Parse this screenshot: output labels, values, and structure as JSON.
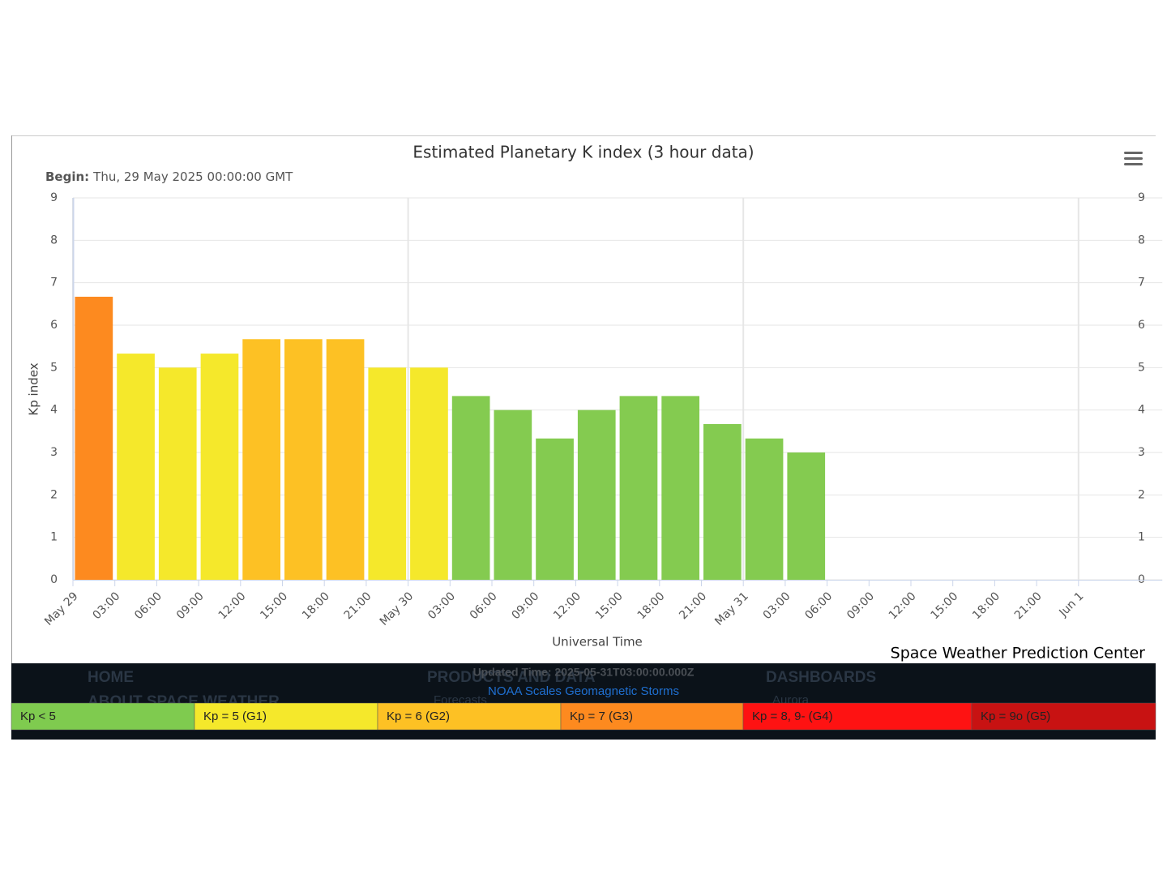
{
  "chart_data": {
    "type": "bar",
    "title": "Estimated Planetary K index (3 hour data)",
    "subtitle_label": "Begin:",
    "subtitle": "Thu, 29 May 2025 00:00:00 GMT",
    "y_label": "Kp index",
    "x_label": "Universal Time",
    "credit": "Space Weather Prediction Center",
    "categories": [
      "May 29",
      "03:00",
      "06:00",
      "09:00",
      "12:00",
      "15:00",
      "18:00",
      "21:00",
      "May 30",
      "03:00",
      "06:00",
      "09:00",
      "12:00",
      "15:00",
      "18:00",
      "21:00",
      "May 31",
      "03:00",
      "06:00",
      "09:00",
      "12:00",
      "15:00",
      "18:00",
      "21:00",
      "Jun 1"
    ],
    "values": [
      6.67,
      5.33,
      5,
      5.33,
      5.67,
      5.67,
      5.67,
      5,
      5,
      4.33,
      4,
      3.33,
      4,
      4.33,
      4.33,
      3.67,
      3.33,
      3,
      null,
      null,
      null,
      null,
      null,
      null,
      null
    ],
    "colors": [
      "#fd8a1f",
      "#f5e82b",
      "#f5e82b",
      "#f5e82b",
      "#fdc124",
      "#fdc124",
      "#fdc124",
      "#f5e82b",
      "#f5e82b",
      "#84cb50",
      "#84cb50",
      "#84cb50",
      "#84cb50",
      "#84cb50",
      "#84cb50",
      "#84cb50",
      "#84cb50",
      "#84cb50",
      null,
      null,
      null,
      null,
      null,
      null,
      null
    ],
    "ylim": [
      0,
      9
    ],
    "yticks": [
      0,
      1,
      2,
      3,
      4,
      5,
      6,
      7,
      8,
      9
    ],
    "y2lim": [
      0,
      9
    ],
    "y2ticks": [
      0,
      1,
      2,
      3,
      4,
      5,
      6,
      7,
      8,
      9
    ],
    "grid": true,
    "scale_legend": [
      {
        "label": "Kp < 5",
        "color": "#7fcb4f"
      },
      {
        "label": "Kp = 5 (G1)",
        "color": "#f5e82b"
      },
      {
        "label": "Kp = 6 (G2)",
        "color": "#fdc124"
      },
      {
        "label": "Kp = 7 (G3)",
        "color": "#fd8a1f"
      },
      {
        "label": "Kp = 8, 9- (G4)",
        "color": "#fe1212"
      },
      {
        "label": "Kp = 9o (G5)",
        "color": "#c81212"
      }
    ]
  },
  "footer": {
    "updated": "Updated Time: 2025-05-31T03:00:00.000Z",
    "scales_link": "NOAA Scales Geomagnetic Storms",
    "menu": [
      "HOME",
      "ABOUT SPACE WEATHER",
      "PRODUCTS AND DATA",
      "Forecasts",
      "DASHBOARDS",
      "Aurora"
    ]
  }
}
